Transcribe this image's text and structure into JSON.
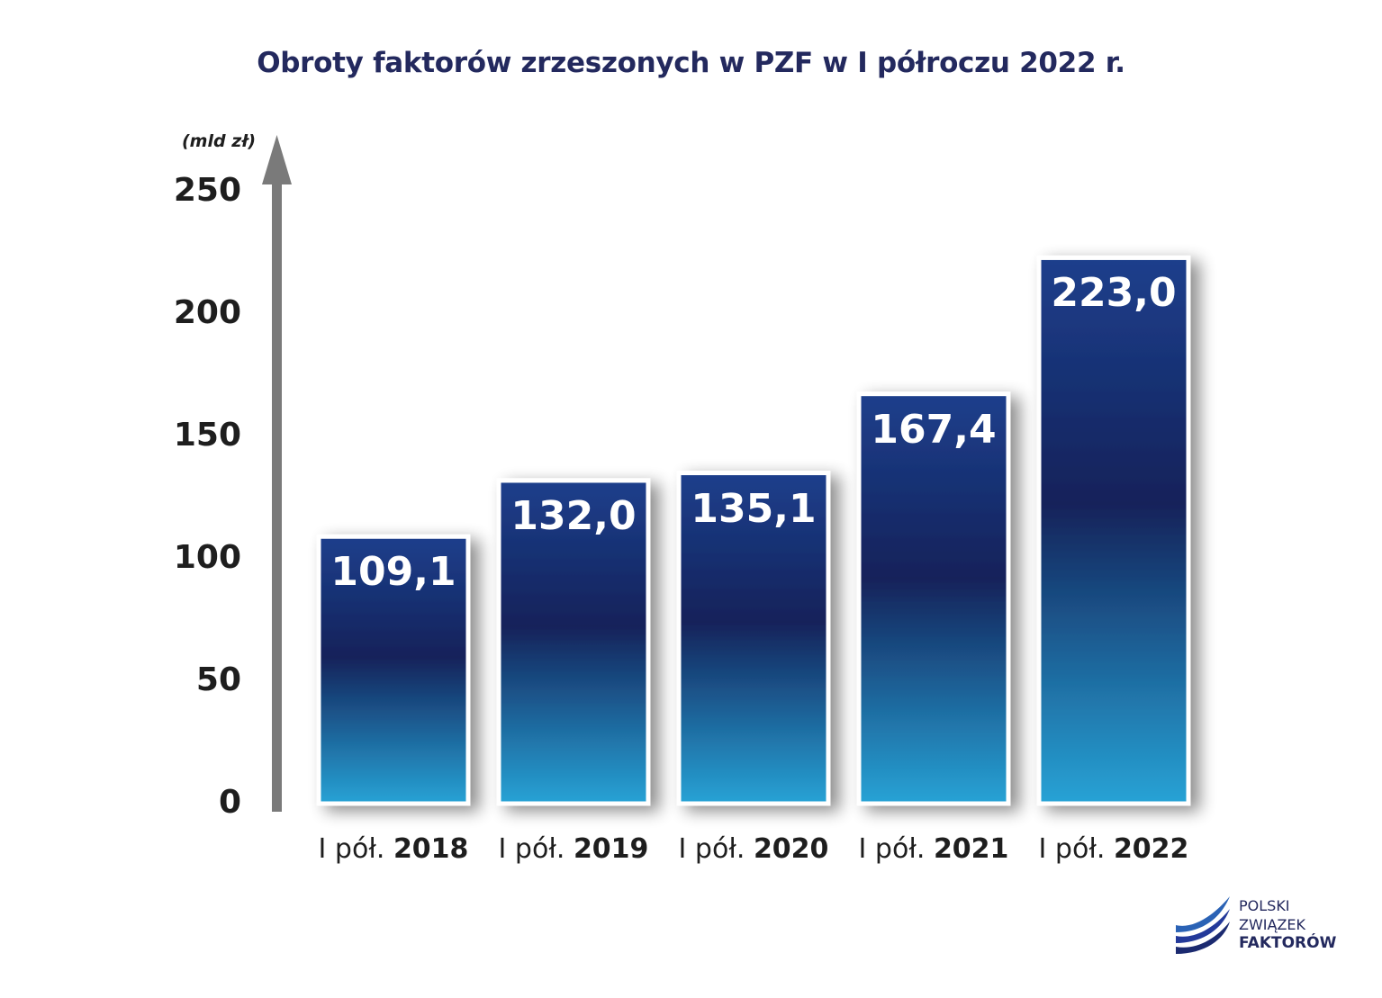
{
  "chart_data": {
    "type": "bar",
    "title": "Obroty faktorów zrzeszonych w PZF w I półroczu 2022 r.",
    "unit_label": "(mld zł)",
    "categories": [
      {
        "prefix": "I pół.",
        "year": "2018"
      },
      {
        "prefix": "I pół.",
        "year": "2019"
      },
      {
        "prefix": "I pół.",
        "year": "2020"
      },
      {
        "prefix": "I pół.",
        "year": "2021"
      },
      {
        "prefix": "I pół.",
        "year": "2022"
      }
    ],
    "values": [
      109.1,
      132.0,
      135.1,
      167.4,
      223.0
    ],
    "value_labels": [
      "109,1",
      "132,0",
      "135,1",
      "167,4",
      "223,0"
    ],
    "ylim": [
      0,
      250
    ],
    "yticks": [
      "0",
      "50",
      "100",
      "150",
      "200",
      "250"
    ],
    "grid": false,
    "legend": "none",
    "colors": {
      "bar_top": "#1d3f8c",
      "bar_mid": "#13225a",
      "bar_bottom": "#27a3d6",
      "axis": "#7a7a7a",
      "title": "#23295e"
    }
  },
  "logo": {
    "line1": "POLSKI",
    "line2": "ZWIĄZEK",
    "line3": "FAKTORÓW",
    "icon": "pzf-logo-swoosh-icon"
  }
}
